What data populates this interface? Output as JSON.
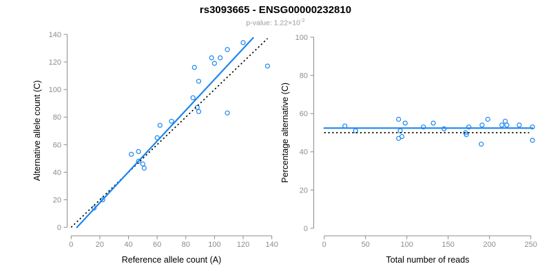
{
  "figure": {
    "title": "rs3093665 - ENSG00000232810",
    "subtitle_base": "p-value: 1.22×10",
    "subtitle_exponent": "-2",
    "colors": {
      "accent_blue": "#1C86EE",
      "identity_line_black": "#000000",
      "axis_gray": "#8C8C8C",
      "subtitle_gray": "#9A9A9A",
      "background": "#FFFFFF"
    }
  },
  "chart_data": [
    {
      "id": "allele-counts-scatter",
      "type": "scatter",
      "xlabel": "Reference allele count (A)",
      "ylabel": "Alternative allele count (C)",
      "xlim": [
        0,
        140
      ],
      "ylim": [
        0,
        140
      ],
      "xticks": [
        0,
        20,
        40,
        60,
        80,
        100,
        120,
        140
      ],
      "yticks": [
        0,
        20,
        40,
        60,
        80,
        100,
        120,
        140
      ],
      "grid": false,
      "legend": "none",
      "points": [
        [
          16,
          14
        ],
        [
          22,
          20
        ],
        [
          42,
          53
        ],
        [
          47,
          55
        ],
        [
          47,
          48
        ],
        [
          50,
          46
        ],
        [
          51,
          43
        ],
        [
          60,
          65
        ],
        [
          62,
          74
        ],
        [
          70,
          77
        ],
        [
          85,
          94
        ],
        [
          88,
          87
        ],
        [
          89,
          84
        ],
        [
          86,
          116
        ],
        [
          89,
          106
        ],
        [
          98,
          123
        ],
        [
          100,
          119
        ],
        [
          104,
          123
        ],
        [
          109,
          83
        ],
        [
          109,
          129
        ],
        [
          120,
          134
        ],
        [
          137,
          117
        ]
      ],
      "fit_line": {
        "x1": 4,
        "y1": 0,
        "x2": 127,
        "y2": 137.5,
        "style": "solid",
        "color": "blue"
      },
      "reference_line": {
        "x1": 0,
        "y1": 0,
        "x2": 137,
        "y2": 137,
        "style": "dotted",
        "color": "black"
      }
    },
    {
      "id": "percentage-alternative-scatter",
      "type": "scatter",
      "xlabel": "Total number of reads",
      "ylabel": "Percentage alternative (C)",
      "xlim": [
        0,
        252
      ],
      "ylim": [
        0,
        100
      ],
      "xticks": [
        0,
        50,
        100,
        150,
        200,
        250
      ],
      "yticks": [
        0,
        20,
        40,
        60,
        80,
        100
      ],
      "grid": false,
      "legend": "none",
      "points": [
        [
          25,
          53.5
        ],
        [
          38,
          51
        ],
        [
          90,
          57
        ],
        [
          92,
          51
        ],
        [
          90,
          47
        ],
        [
          94,
          48
        ],
        [
          98,
          55
        ],
        [
          120,
          53
        ],
        [
          132,
          55
        ],
        [
          145,
          52
        ],
        [
          171,
          50
        ],
        [
          172,
          49
        ],
        [
          175,
          53
        ],
        [
          190,
          44
        ],
        [
          191,
          54
        ],
        [
          198,
          57
        ],
        [
          215,
          54
        ],
        [
          219,
          56
        ],
        [
          221,
          54
        ],
        [
          236,
          54
        ],
        [
          252,
          53
        ],
        [
          252,
          46
        ]
      ],
      "fit_line": {
        "x1": 0,
        "y1": 52.4,
        "x2": 252,
        "y2": 52.4,
        "style": "solid",
        "color": "blue"
      },
      "reference_line": {
        "x1": 0,
        "y1": 50,
        "x2": 248,
        "y2": 50,
        "style": "dotted",
        "color": "black"
      }
    }
  ]
}
